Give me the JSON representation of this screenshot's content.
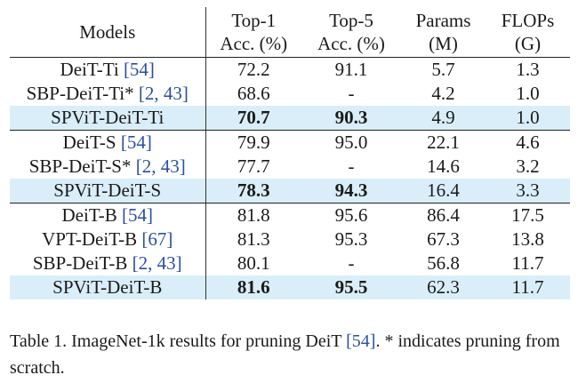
{
  "table": {
    "headers": [
      {
        "line1": "Models",
        "line2": ""
      },
      {
        "line1": "Top-1",
        "line2": "Acc. (%)"
      },
      {
        "line1": "Top-5",
        "line2": "Acc. (%)"
      },
      {
        "line1": "Params",
        "line2": "(M)"
      },
      {
        "line1": "FLOPs",
        "line2": "(G)"
      }
    ],
    "groups": [
      {
        "rows": [
          {
            "model": "DeiT-Ti ",
            "cite": "[54]",
            "top1": "72.2",
            "top5": "91.1",
            "params": "5.7",
            "flops": "1.3",
            "highlight": false
          },
          {
            "model": "SBP-DeiT-Ti* ",
            "cite": "[2, 43]",
            "top1": "68.6",
            "top5": "-",
            "params": "4.2",
            "flops": "1.0",
            "highlight": false
          },
          {
            "model": "SPViT-DeiT-Ti",
            "cite": "",
            "top1": "70.7",
            "top5": "90.3",
            "params": "4.9",
            "flops": "1.0",
            "highlight": true
          }
        ]
      },
      {
        "rows": [
          {
            "model": "DeiT-S ",
            "cite": "[54]",
            "top1": "79.9",
            "top5": "95.0",
            "params": "22.1",
            "flops": "4.6",
            "highlight": false
          },
          {
            "model": "SBP-DeiT-S* ",
            "cite": "[2, 43]",
            "top1": "77.7",
            "top5": "-",
            "params": "14.6",
            "flops": "3.2",
            "highlight": false
          },
          {
            "model": "SPViT-DeiT-S",
            "cite": "",
            "top1": "78.3",
            "top5": "94.3",
            "params": "16.4",
            "flops": "3.3",
            "highlight": true
          }
        ]
      },
      {
        "rows": [
          {
            "model": "DeiT-B ",
            "cite": "[54]",
            "top1": "81.8",
            "top5": "95.6",
            "params": "86.4",
            "flops": "17.5",
            "highlight": false
          },
          {
            "model": "VPT-DeiT-B ",
            "cite": "[67]",
            "top1": "81.3",
            "top5": "95.3",
            "params": "67.3",
            "flops": "13.8",
            "highlight": false
          },
          {
            "model": "SBP-DeiT-B ",
            "cite": "[2, 43]",
            "top1": "80.1",
            "top5": "-",
            "params": "56.8",
            "flops": "11.7",
            "highlight": false
          },
          {
            "model": "SPViT-DeiT-B",
            "cite": "",
            "top1": "81.6",
            "top5": "95.5",
            "params": "62.3",
            "flops": "11.7",
            "highlight": true
          }
        ]
      }
    ]
  },
  "caption": {
    "prefix": "Table 1. ImageNet-1k results for pruning DeiT ",
    "cite": "[54]",
    "suffix": ". * indicates pruning from scratch."
  },
  "colors": {
    "highlight_row": "#d9eef8",
    "citation": "#2b4ea2"
  }
}
